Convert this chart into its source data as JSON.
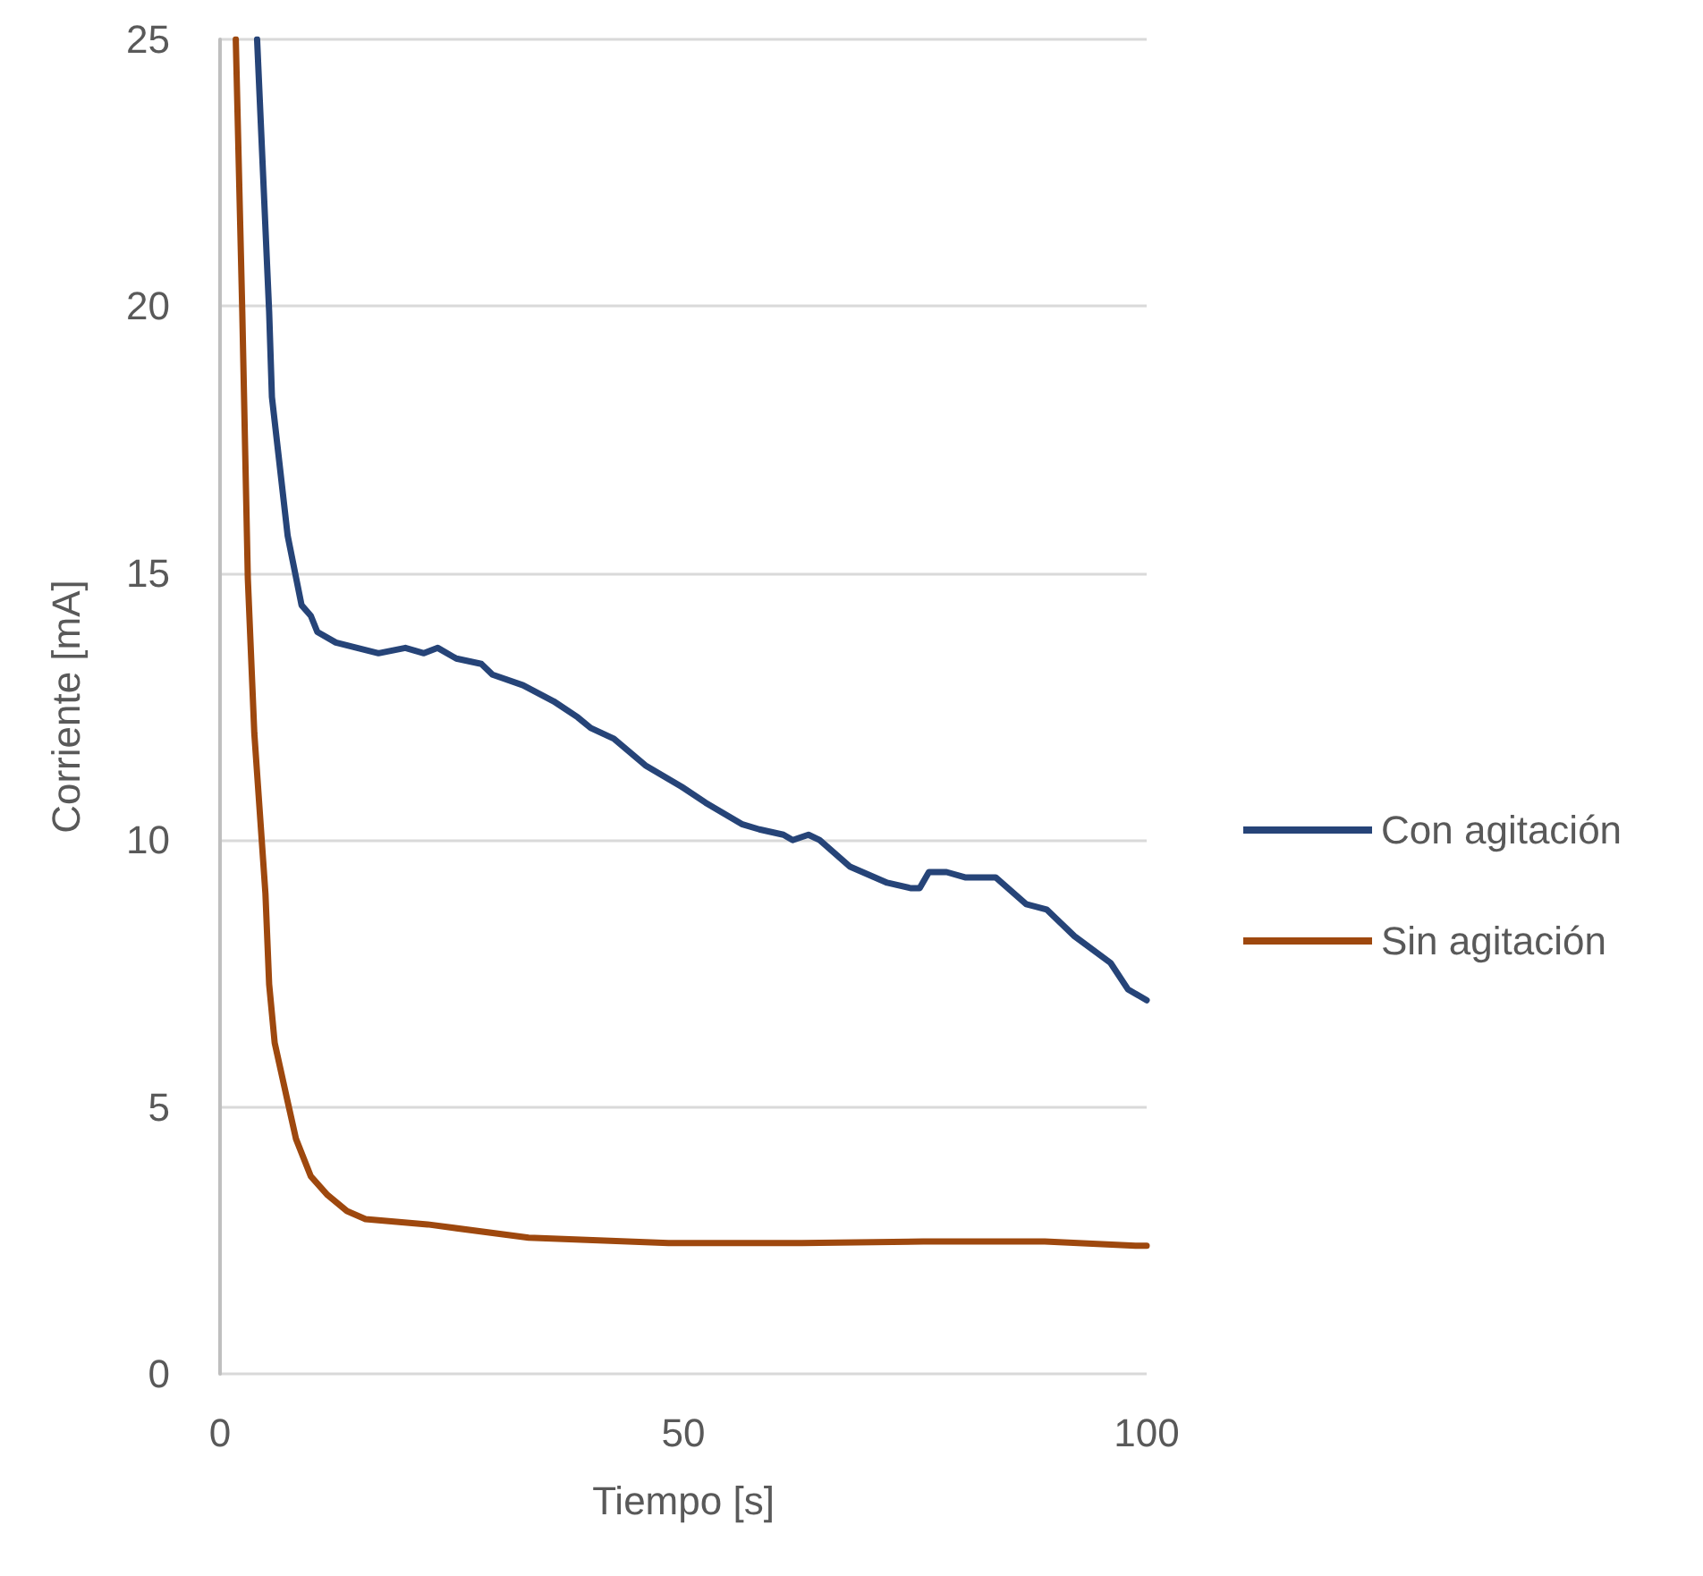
{
  "chart_data": {
    "type": "line",
    "xlabel": "Tiempo [s]",
    "ylabel": "Corriente [mA]",
    "xlim": [
      0,
      100
    ],
    "xticks": [
      0,
      50,
      100
    ],
    "ylim": [
      0,
      25
    ],
    "yticks": [
      0,
      5,
      10,
      15,
      20,
      25
    ],
    "grid": "y",
    "legend": "right",
    "marker": "none",
    "line_style": "solid",
    "series": [
      {
        "name": "Con agitación",
        "color": "#264478",
        "x": [
          4.0,
          5.3,
          5.6,
          7.3,
          8.8,
          9.8,
          10.5,
          12.5,
          17.1,
          20.0,
          22.0,
          23.5,
          25.5,
          28.2,
          29.4,
          32.7,
          36.0,
          38.6,
          40.0,
          42.5,
          45.9,
          49.8,
          52.4,
          56.3,
          58.2,
          60.8,
          61.8,
          63.5,
          64.7,
          68.0,
          72.0,
          74.5,
          75.5,
          76.5,
          78.4,
          80.4,
          83.7,
          87.0,
          89.2,
          92.2,
          96.1,
          98.0,
          100.0
        ],
        "values": [
          25.0,
          19.9,
          18.3,
          15.7,
          14.4,
          14.2,
          13.9,
          13.7,
          13.5,
          13.6,
          13.5,
          13.6,
          13.4,
          13.3,
          13.1,
          12.9,
          12.6,
          12.3,
          12.1,
          11.9,
          11.4,
          11.0,
          10.7,
          10.3,
          10.2,
          10.1,
          10.0,
          10.1,
          10.0,
          9.5,
          9.2,
          9.1,
          9.1,
          9.4,
          9.4,
          9.3,
          9.3,
          8.8,
          8.7,
          8.2,
          7.7,
          7.2,
          7.0
        ]
      },
      {
        "name": "Sin agitación",
        "color": "#9e480e",
        "x": [
          1.7,
          2.4,
          3.0,
          3.7,
          4.9,
          5.3,
          5.9,
          7.3,
          8.2,
          9.8,
          11.6,
          13.7,
          15.7,
          22.4,
          33.3,
          48.4,
          62.8,
          75.9,
          89.0,
          98.8,
          100.0
        ],
        "values": [
          25.0,
          19.9,
          14.9,
          12.0,
          9.0,
          7.3,
          6.2,
          5.1,
          4.4,
          3.7,
          3.35,
          3.05,
          2.9,
          2.8,
          2.55,
          2.45,
          2.45,
          2.48,
          2.48,
          2.4,
          2.4
        ]
      }
    ]
  }
}
